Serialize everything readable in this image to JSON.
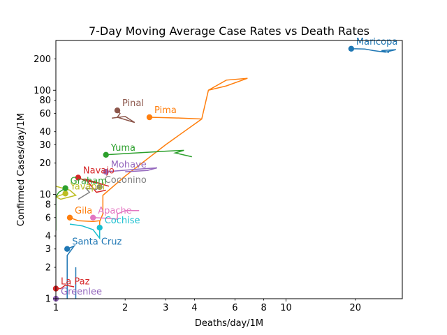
{
  "chart_data": {
    "type": "line",
    "title": "7-Day Moving Average Case Rates vs Death Rates",
    "xlabel": "Deaths/day/1M",
    "ylabel": "Confirmed Cases/day/1M",
    "xscale": "log",
    "yscale": "log",
    "xlim": [
      1,
      32
    ],
    "ylim": [
      1,
      300
    ],
    "grid": false,
    "x_major_ticks": [
      "1",
      "10"
    ],
    "x_minor_ticks": [
      "2",
      "3",
      "4",
      "6",
      "8",
      "20"
    ],
    "y_major_ticks": [
      "1",
      "10",
      "100"
    ],
    "y_minor_ticks": [
      "2",
      "3",
      "4",
      "6",
      "8",
      "20",
      "30",
      "40",
      "60",
      "80",
      "200"
    ],
    "series": [
      {
        "name": "Maricopa",
        "color": "#1f77b4",
        "x": [
          28,
          26,
          30,
          27,
          24,
          22,
          19.2
        ],
        "y": [
          230,
          240,
          245,
          232,
          240,
          248,
          250
        ]
      },
      {
        "name": "Pima",
        "color": "#ff7f0e",
        "x": [
          1.55,
          1.55,
          1.6,
          1.6,
          2.0,
          3.0,
          4.3,
          4.6,
          5.5,
          6.8,
          5.5,
          4.6,
          4.3,
          3.5,
          2.55
        ],
        "y": [
          4.5,
          5.5,
          6.5,
          9.8,
          15,
          30,
          53,
          100,
          110,
          130,
          125,
          100,
          53,
          54,
          55
        ]
      },
      {
        "name": "Yuma",
        "color": "#2ca02c",
        "x": [
          3.9,
          3.3,
          3.6,
          3.0,
          2.6,
          2.2,
          1.65
        ],
        "y": [
          23,
          25,
          26.5,
          26,
          25.5,
          25,
          24
        ]
      },
      {
        "name": "Pinal",
        "color": "#8c564b",
        "x": [
          1.75,
          2.0,
          2.2,
          1.85,
          1.9,
          1.85
        ],
        "y": [
          54,
          56,
          49,
          55,
          60,
          64
        ]
      },
      {
        "name": "Mohave",
        "color": "#9467bd",
        "x": [
          2.0,
          2.5,
          2.75,
          2.3,
          1.65
        ],
        "y": [
          16.5,
          17,
          18,
          17.5,
          16.5
        ]
      },
      {
        "name": "Navajo",
        "color": "#d62728",
        "x": [
          1.65,
          1.5,
          1.35,
          1.7,
          1.5,
          1.35,
          1.25
        ],
        "y": [
          11,
          10.5,
          14,
          12,
          13,
          13.5,
          14.5
        ]
      },
      {
        "name": "Coconino",
        "color": "#7f7f7f",
        "x": [
          1.25,
          1.4,
          1.35,
          1.5,
          1.55
        ],
        "y": [
          9,
          10.5,
          11.5,
          11.2,
          11.8
        ]
      },
      {
        "name": "Yavapai",
        "color": "#bcbd22",
        "x": [
          1.0,
          1.15,
          1.22,
          1.05,
          1.0,
          1.1
        ],
        "y": [
          12,
          11,
          9.8,
          9,
          9.5,
          10.2
        ]
      },
      {
        "name": "Graham",
        "color": "#2ca02c",
        "x": [
          1.0,
          1.0,
          1.03,
          1.1
        ],
        "y": [
          4.5,
          9.5,
          10.5,
          11.5
        ]
      },
      {
        "name": "Gila",
        "color": "#ff7f0e",
        "x": [
          1.55,
          1.45,
          1.25,
          1.15
        ],
        "y": [
          5.6,
          5.5,
          5.6,
          6.0
        ]
      },
      {
        "name": "Apache",
        "color": "#e377c2",
        "x": [
          2.3,
          2.0,
          1.85,
          1.85,
          1.7,
          1.45
        ],
        "y": [
          7.0,
          7.0,
          6.5,
          5.8,
          5.9,
          6.0
        ]
      },
      {
        "name": "Cochise",
        "color": "#17becf",
        "x": [
          1.15,
          1.3,
          1.45,
          1.55,
          1.55
        ],
        "y": [
          5.2,
          5.0,
          4.6,
          3.8,
          4.8
        ]
      },
      {
        "name": "Santa Cruz",
        "color": "#1f77b4",
        "x": [
          1.12,
          1.12,
          1.12,
          1.2,
          1.12
        ],
        "y": [
          0.9,
          1.3,
          2.6,
          3.2,
          3.0
        ]
      },
      {
        "name": "La Paz",
        "color": "#d62728",
        "x": [
          1.2,
          1.1,
          1.05,
          1.0
        ],
        "y": [
          1.3,
          1.35,
          1.25,
          1.25
        ]
      },
      {
        "name": "Greenlee",
        "color": "#9467bd",
        "x": [
          1.0,
          1.0
        ],
        "y": [
          0.95,
          1.0
        ]
      },
      {
        "name": "",
        "color": "#1f77b4",
        "x": [
          1.22,
          1.22
        ],
        "y": [
          0.9,
          2.0
        ]
      }
    ]
  }
}
